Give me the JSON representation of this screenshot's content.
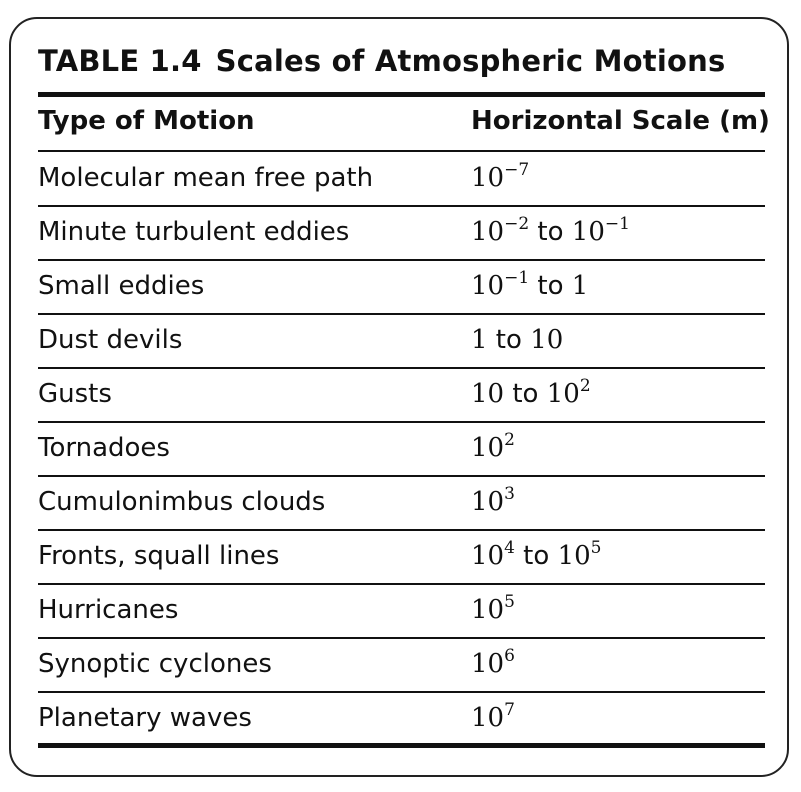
{
  "table": {
    "label": "TABLE 1.4",
    "caption": "Scales of Atmospheric Motions",
    "columns": [
      "Type of Motion",
      "Horizontal Scale (m)"
    ],
    "rows": [
      {
        "type": "Molecular mean free path",
        "scale": [
          {
            "b": "10",
            "e": "−7"
          }
        ]
      },
      {
        "type": "Minute turbulent eddies",
        "scale": [
          {
            "b": "10",
            "e": "−2"
          },
          {
            "t": " to "
          },
          {
            "b": "10",
            "e": "−1"
          }
        ]
      },
      {
        "type": "Small eddies",
        "scale": [
          {
            "b": "10",
            "e": "−1"
          },
          {
            "t": " to "
          },
          {
            "b": "1"
          }
        ]
      },
      {
        "type": "Dust devils",
        "scale": [
          {
            "b": "1"
          },
          {
            "t": " to "
          },
          {
            "b": "10"
          }
        ]
      },
      {
        "type": "Gusts",
        "scale": [
          {
            "b": "10"
          },
          {
            "t": " to "
          },
          {
            "b": "10",
            "e": "2"
          }
        ]
      },
      {
        "type": "Tornadoes",
        "scale": [
          {
            "b": "10",
            "e": "2"
          }
        ]
      },
      {
        "type": "Cumulonimbus clouds",
        "scale": [
          {
            "b": "10",
            "e": "3"
          }
        ]
      },
      {
        "type": "Fronts, squall lines",
        "scale": [
          {
            "b": "10",
            "e": "4"
          },
          {
            "t": " to "
          },
          {
            "b": "10",
            "e": "5"
          }
        ]
      },
      {
        "type": "Hurricanes",
        "scale": [
          {
            "b": "10",
            "e": "5"
          }
        ]
      },
      {
        "type": "Synoptic cyclones",
        "scale": [
          {
            "b": "10",
            "e": "6"
          }
        ]
      },
      {
        "type": "Planetary waves",
        "scale": [
          {
            "b": "10",
            "e": "7"
          }
        ]
      }
    ]
  }
}
